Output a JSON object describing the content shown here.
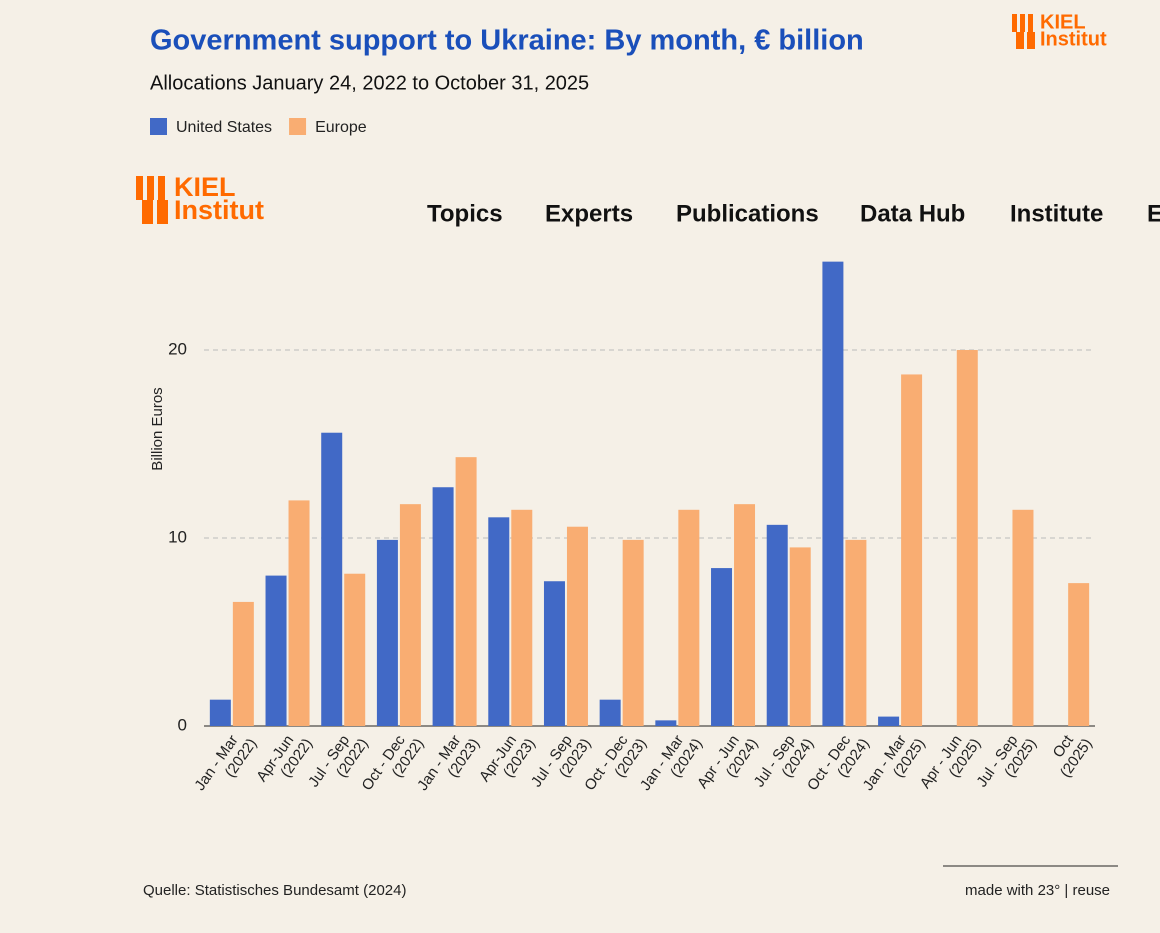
{
  "chart_data": {
    "type": "bar",
    "title": "Government support to Ukraine: By month, € billion",
    "subtitle": "Allocations January 24, 2022 to October 31, 2025",
    "y_label": "Billion Euros",
    "categories": [
      "Jan - Mar (2022)",
      "Apr-Jun (2022)",
      "Jul - Sep (2022)",
      "Oct - Dec (2022)",
      "Jan - Mar (2023)",
      "Apr-Jun (2023)",
      "Jul - Sep (2023)",
      "Oct - Dec (2023)",
      "Jan - Mar (2024)",
      "Apr - Jun (2024)",
      "Jul - Sep (2024)",
      "Oct - Dec (2024)",
      "Jan - Mar (2025)",
      "Apr - Jun (2025)",
      "Jul - Sep (2025)",
      "Oct (2025)"
    ],
    "series": [
      {
        "name": "United States",
        "color": "#4169c6",
        "values": [
          1.4,
          8.0,
          15.6,
          9.9,
          12.7,
          11.1,
          7.7,
          1.4,
          0.3,
          8.4,
          10.7,
          24.7,
          0.5,
          0,
          0,
          0
        ]
      },
      {
        "name": "Europe",
        "color": "#f9ad72",
        "values": [
          6.6,
          12.0,
          8.1,
          11.8,
          14.3,
          11.5,
          10.6,
          9.9,
          11.5,
          11.8,
          9.5,
          9.9,
          18.7,
          20.0,
          11.5,
          7.6
        ]
      }
    ],
    "ylim": [
      0,
      25
    ],
    "yticks": [
      0,
      10,
      20
    ],
    "grid": true,
    "source": "Quelle: Statistisches Bundesamt (2024)",
    "credit": "made with 23° | reuse"
  },
  "logo": {
    "line1": "KIEL",
    "line2": "Institut"
  },
  "nav": {
    "items": [
      "Topics",
      "Experts",
      "Publications",
      "Data Hub",
      "Institute",
      "E"
    ]
  }
}
